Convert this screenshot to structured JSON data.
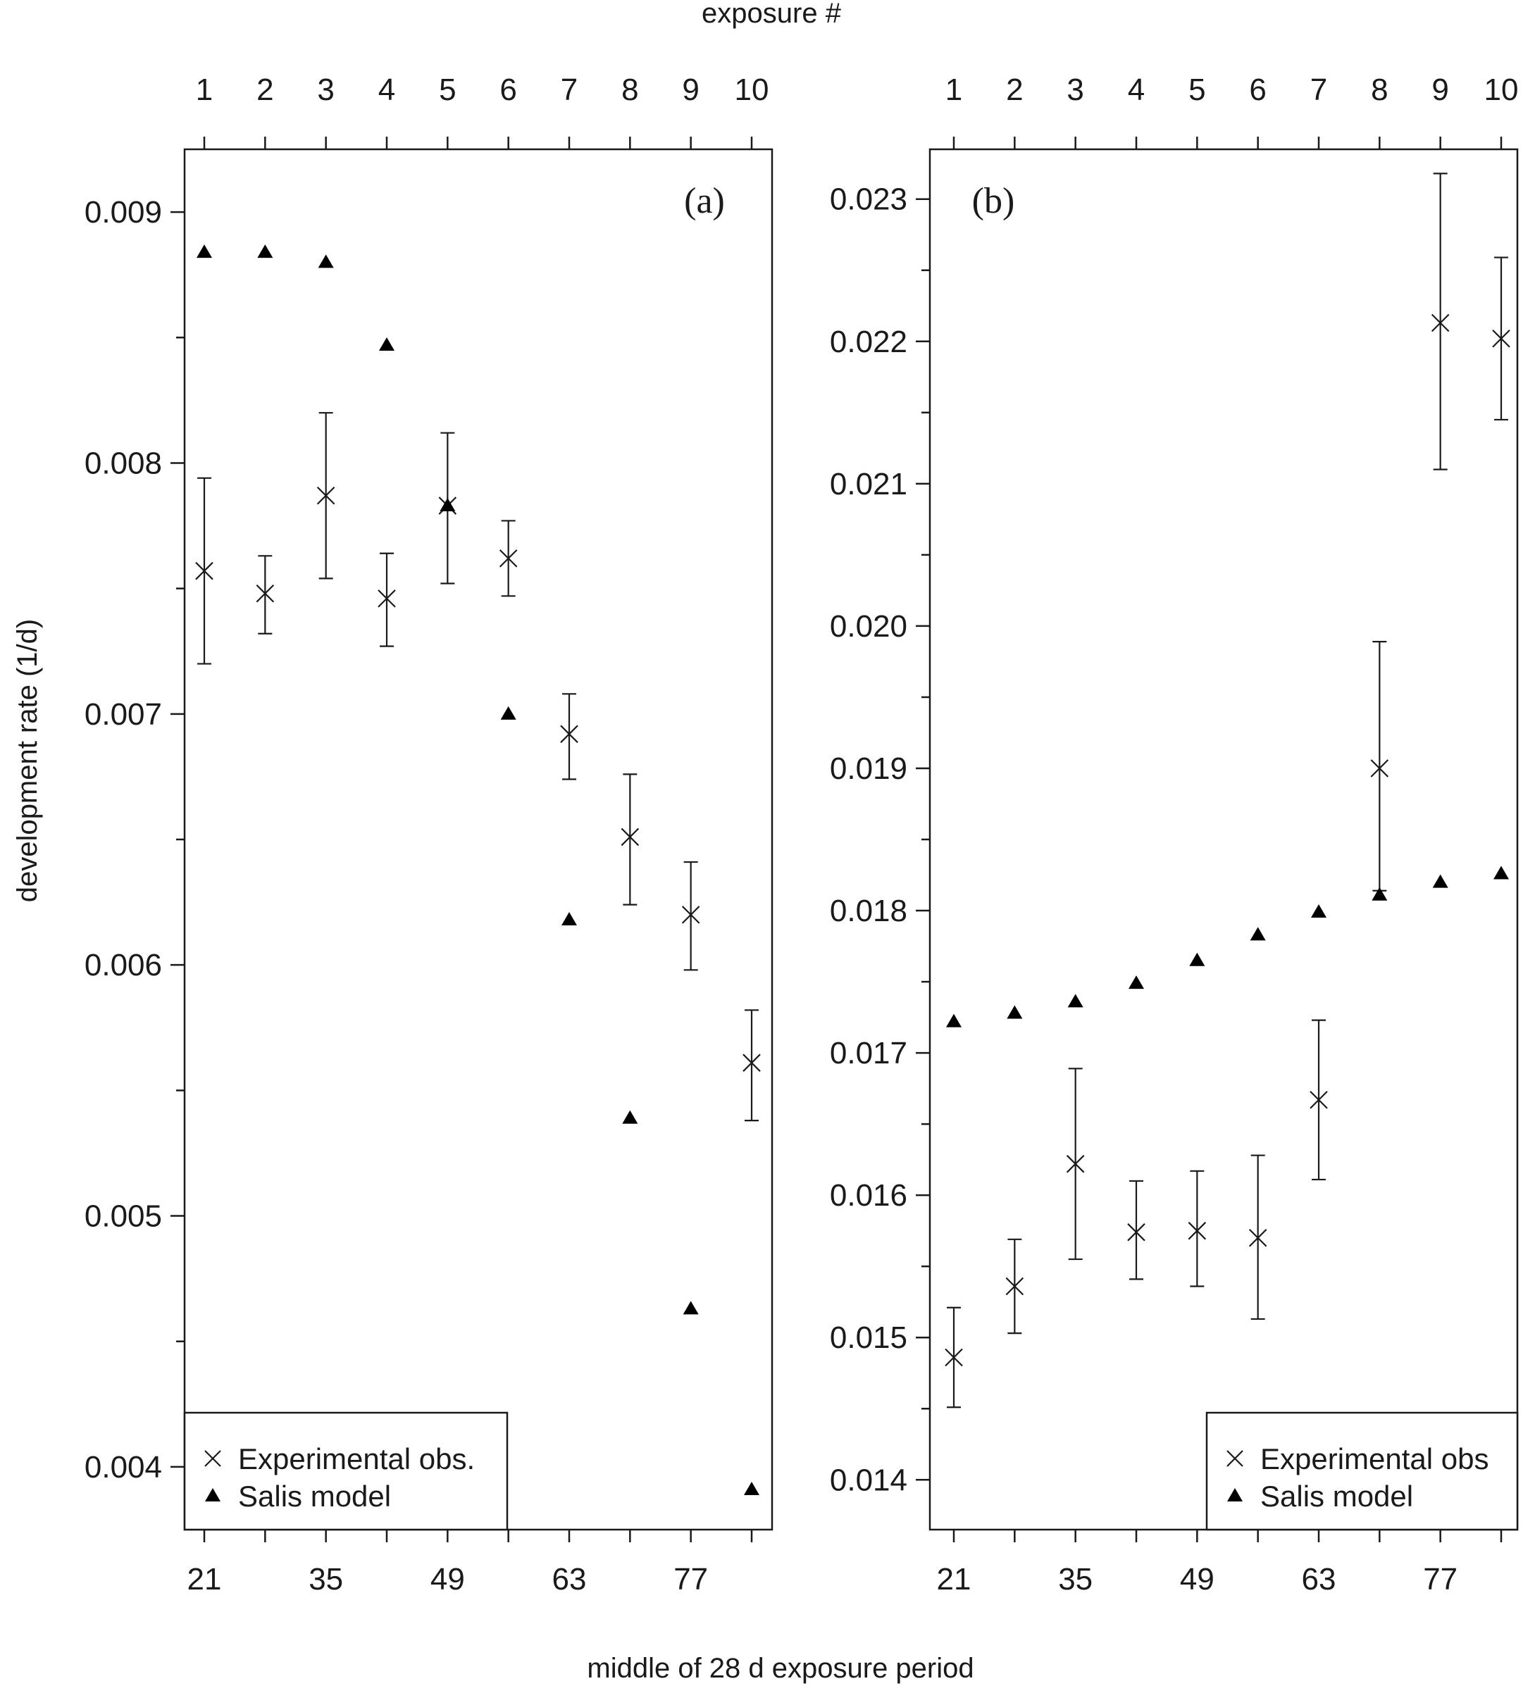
{
  "chart_data": {
    "top_xlabel": "exposure #",
    "bottom_xlabel": "middle of 28 d exposure period",
    "ylabel": "development rate (1/d)",
    "panels": [
      {
        "panel_label": "(a)",
        "type": "scatter",
        "exposure_numbers": [
          1,
          2,
          3,
          4,
          5,
          6,
          7,
          8,
          9,
          10
        ],
        "x_days": [
          21,
          28,
          35,
          42,
          49,
          56,
          63,
          70,
          77,
          84
        ],
        "x_tick_labels": [
          "21",
          "35",
          "49",
          "63",
          "77"
        ],
        "ylim": [
          0.00375,
          0.00925
        ],
        "y_ticks": [
          0.004,
          0.005,
          0.006,
          0.007,
          0.008,
          0.009
        ],
        "y_tick_labels": [
          "0.004",
          "0.005",
          "0.006",
          "0.007",
          "0.008",
          "0.009"
        ],
        "legend": {
          "position": "bottom-left",
          "entries": [
            "Experimental obs.",
            "Salis model"
          ]
        },
        "series": [
          {
            "name": "Experimental obs.",
            "marker": "x",
            "values": [
              0.00757,
              0.00748,
              0.00787,
              0.00746,
              0.00783,
              0.00762,
              0.00692,
              0.00651,
              0.0062,
              0.00561
            ],
            "err_low": [
              0.0072,
              0.00732,
              0.00754,
              0.00727,
              0.00752,
              0.00747,
              0.00674,
              0.00624,
              0.00598,
              0.00538
            ],
            "err_high": [
              0.00794,
              0.00763,
              0.0082,
              0.00764,
              0.00812,
              0.00777,
              0.00708,
              0.00676,
              0.00641,
              0.00582
            ]
          },
          {
            "name": "Salis model",
            "marker": "triangle",
            "values": [
              0.00884,
              0.00884,
              0.0088,
              0.00847,
              0.00783,
              0.007,
              0.00618,
              0.00539,
              0.00463,
              0.00391
            ]
          }
        ]
      },
      {
        "panel_label": "(b)",
        "type": "scatter",
        "exposure_numbers": [
          1,
          2,
          3,
          4,
          5,
          6,
          7,
          8,
          9,
          10
        ],
        "x_days": [
          21,
          28,
          35,
          42,
          49,
          56,
          63,
          70,
          77,
          84
        ],
        "x_tick_labels": [
          "21",
          "35",
          "49",
          "63",
          "77"
        ],
        "ylim": [
          0.01365,
          0.02335
        ],
        "y_ticks": [
          0.014,
          0.015,
          0.016,
          0.017,
          0.018,
          0.019,
          0.02,
          0.021,
          0.022,
          0.023
        ],
        "y_tick_labels": [
          "0.014",
          "0.015",
          "0.016",
          "0.017",
          "0.018",
          "0.019",
          "0.020",
          "0.021",
          "0.022",
          "0.023"
        ],
        "legend": {
          "position": "bottom-right",
          "entries": [
            "Experimental obs",
            "Salis model"
          ]
        },
        "series": [
          {
            "name": "Experimental obs",
            "marker": "x",
            "values": [
              0.01486,
              0.01536,
              0.01622,
              0.01574,
              0.01575,
              0.0157,
              0.01667,
              0.019,
              0.02213,
              0.02202
            ],
            "err_low": [
              0.01451,
              0.01503,
              0.01555,
              0.01541,
              0.01536,
              0.01513,
              0.01611,
              0.01814,
              0.0211,
              0.02145
            ],
            "err_high": [
              0.01521,
              0.01569,
              0.01689,
              0.0161,
              0.01617,
              0.01628,
              0.01723,
              0.01989,
              0.02318,
              0.02259
            ]
          },
          {
            "name": "Salis model",
            "marker": "triangle",
            "values": [
              0.01722,
              0.01728,
              0.01736,
              0.01749,
              0.01765,
              0.01783,
              0.01799,
              0.01811,
              0.0182,
              0.01826
            ]
          }
        ]
      }
    ]
  }
}
